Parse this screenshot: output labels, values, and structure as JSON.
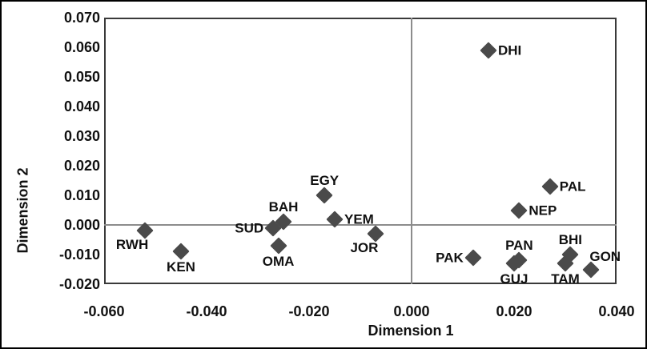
{
  "colors": {
    "marker": "#4a4a4a",
    "zero_line": "#8c8c8c",
    "plot_border": "#3a3a3a",
    "figure_border": "#000000",
    "text": "#111111",
    "background": "#ffffff"
  },
  "chart_data": {
    "type": "scatter",
    "title": "",
    "xlabel": "Dimension 1",
    "ylabel": "Dimension 2",
    "xlim": [
      -0.06,
      0.04
    ],
    "ylim": [
      -0.02,
      0.07
    ],
    "grid": false,
    "zero_reference_lines": true,
    "legend": "none",
    "marker_shape": "diamond",
    "x_ticks": [
      {
        "label": "-0.060",
        "value": -0.06
      },
      {
        "label": "-0.040",
        "value": -0.04
      },
      {
        "label": "-0.020",
        "value": -0.02
      },
      {
        "label": "0.000",
        "value": 0.0
      },
      {
        "label": "0.020",
        "value": 0.02
      },
      {
        "label": "0.040",
        "value": 0.04
      }
    ],
    "y_ticks": [
      {
        "label": "0.070",
        "value": 0.07
      },
      {
        "label": "0.060",
        "value": 0.06
      },
      {
        "label": "0.050",
        "value": 0.05
      },
      {
        "label": "0.040",
        "value": 0.04
      },
      {
        "label": "0.030",
        "value": 0.03
      },
      {
        "label": "0.020",
        "value": 0.02
      },
      {
        "label": "0.010",
        "value": 0.01
      },
      {
        "label": "0.000",
        "value": 0.0
      },
      {
        "label": "-0.010",
        "value": -0.01
      },
      {
        "label": "-0.020",
        "value": -0.02
      }
    ],
    "points": [
      {
        "label": "DHI",
        "x": 0.015,
        "y": 0.059,
        "label_side": "right"
      },
      {
        "label": "PAL",
        "x": 0.027,
        "y": 0.013,
        "label_side": "right"
      },
      {
        "label": "NEP",
        "x": 0.021,
        "y": 0.005,
        "label_side": "right"
      },
      {
        "label": "EGY",
        "x": -0.017,
        "y": 0.01,
        "label_side": "above"
      },
      {
        "label": "BAH",
        "x": -0.025,
        "y": 0.001,
        "label_side": "above"
      },
      {
        "label": "YEM",
        "x": -0.015,
        "y": 0.002,
        "label_side": "right"
      },
      {
        "label": "SUD",
        "x": -0.027,
        "y": -0.001,
        "label_side": "left"
      },
      {
        "label": "RWH",
        "x": -0.052,
        "y": -0.002,
        "label_side": "below-left"
      },
      {
        "label": "KEN",
        "x": -0.045,
        "y": -0.009,
        "label_side": "below"
      },
      {
        "label": "OMA",
        "x": -0.026,
        "y": -0.007,
        "label_side": "below"
      },
      {
        "label": "JOR",
        "x": -0.007,
        "y": -0.003,
        "label_side": "below-left"
      },
      {
        "label": "PAK",
        "x": 0.012,
        "y": -0.011,
        "label_side": "left"
      },
      {
        "label": "PAN",
        "x": 0.021,
        "y": -0.012,
        "label_side": "above"
      },
      {
        "label": "GUJ",
        "x": 0.02,
        "y": -0.013,
        "label_side": "below"
      },
      {
        "label": "BHI",
        "x": 0.031,
        "y": -0.01,
        "label_side": "above"
      },
      {
        "label": "TAM",
        "x": 0.03,
        "y": -0.013,
        "label_side": "below"
      },
      {
        "label": "GON",
        "x": 0.035,
        "y": -0.015,
        "label_side": "above-right"
      }
    ]
  }
}
